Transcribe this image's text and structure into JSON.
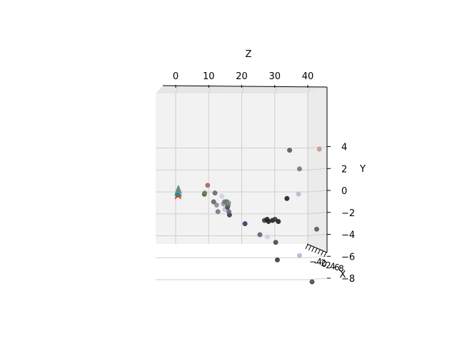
{
  "chart_data": {
    "type": "scatter",
    "projection": "3d",
    "view": "looking along the x axis; z horizontal on top, y vertical on the right (inverted)",
    "grid": true,
    "axes": {
      "z": {
        "label": "Z",
        "range": [
          -4,
          46
        ],
        "ticks": [
          0,
          10,
          20,
          30,
          40
        ],
        "tick_labels": [
          "0",
          "10",
          "20",
          "30",
          "40"
        ]
      },
      "y": {
        "label": "Y",
        "range": [
          -9,
          5
        ],
        "inverted": true,
        "ticks": [
          -8,
          -6,
          -4,
          -2,
          0,
          2,
          4
        ],
        "tick_labels": [
          "−8",
          "−6",
          "−4",
          "−2",
          "0",
          "2",
          "4"
        ]
      },
      "x": {
        "label": "X",
        "tick_labels": [
          "−4",
          "−2",
          "0",
          "2",
          "4",
          "6",
          "8"
        ]
      }
    },
    "points": [
      {
        "z": 41.3,
        "y": -8.2,
        "color": "#404040"
      },
      {
        "z": 30.8,
        "y": -6.2,
        "color": "#303040"
      },
      {
        "z": 37.5,
        "y": -5.8,
        "color": "#a8b4d8"
      },
      {
        "z": 30.3,
        "y": -4.6,
        "color": "#404048"
      },
      {
        "z": 25.5,
        "y": -3.9,
        "color": "#5a5a6a"
      },
      {
        "z": 42.7,
        "y": -3.4,
        "color": "#505060"
      },
      {
        "z": 27.8,
        "y": -4.1,
        "color": "#c8d0e8"
      },
      {
        "z": 21.0,
        "y": -2.9,
        "color": "#2a3060"
      },
      {
        "z": 26.9,
        "y": -2.6,
        "color": "#303038"
      },
      {
        "z": 28.1,
        "y": -2.7,
        "color": "#1a1a1a"
      },
      {
        "z": 27.7,
        "y": -2.5,
        "color": "#202020"
      },
      {
        "z": 29.3,
        "y": -2.6,
        "color": "#1a1a1a"
      },
      {
        "z": 30.1,
        "y": -2.5,
        "color": "#303030"
      },
      {
        "z": 31.1,
        "y": -2.7,
        "color": "#141414"
      },
      {
        "z": 16.3,
        "y": -2.1,
        "color": "#303040"
      },
      {
        "z": 16.1,
        "y": -1.8,
        "color": "#606070"
      },
      {
        "z": 14.9,
        "y": -1.6,
        "color": "#b8c0d8"
      },
      {
        "z": 15.7,
        "y": -1.4,
        "color": "#3a3a4a"
      },
      {
        "z": 15.9,
        "y": -1.2,
        "color": "#5a6a50"
      },
      {
        "z": 15.5,
        "y": -0.9,
        "color": "#2a7030"
      },
      {
        "z": 12.8,
        "y": -1.8,
        "color": "#707080"
      },
      {
        "z": 14.5,
        "y": -1.1,
        "color": "#909098"
      },
      {
        "z": 12.4,
        "y": -1.2,
        "color": "#8a8a92"
      },
      {
        "z": 11.5,
        "y": -0.9,
        "color": "#5a5a64"
      },
      {
        "z": 14.8,
        "y": -0.9,
        "color": "#707078"
      },
      {
        "z": 16.0,
        "y": -1.0,
        "color": "#808898"
      },
      {
        "z": 14.0,
        "y": -0.4,
        "color": "#c8d0e8"
      },
      {
        "z": 8.7,
        "y": -0.2,
        "color": "#3a3a3a"
      },
      {
        "z": 8.8,
        "y": -0.1,
        "color": "#6a8a5a"
      },
      {
        "z": 11.9,
        "y": -0.1,
        "color": "#606068"
      },
      {
        "z": 33.7,
        "y": -0.6,
        "color": "#141414"
      },
      {
        "z": 37.2,
        "y": -0.2,
        "color": "#b0b8d8"
      },
      {
        "z": 9.7,
        "y": 0.6,
        "color": "#a06058"
      },
      {
        "z": 37.5,
        "y": 2.1,
        "color": "#707078"
      },
      {
        "z": 34.5,
        "y": 3.8,
        "color": "#505058"
      },
      {
        "z": 43.5,
        "y": 3.9,
        "color": "#c89080"
      }
    ],
    "quiver": [
      {
        "z": 0.7,
        "y": -0.3,
        "color": "#d62728"
      },
      {
        "z": 0.9,
        "y": -0.1,
        "color": "#2ca02c"
      },
      {
        "z": 0.7,
        "y": 0.0,
        "color": "#1f77b4"
      },
      {
        "z": 0.6,
        "y": 0.1,
        "color": "#17becf"
      },
      {
        "z": 0.9,
        "y": 0.2,
        "color": "#7f7f7f"
      }
    ]
  }
}
